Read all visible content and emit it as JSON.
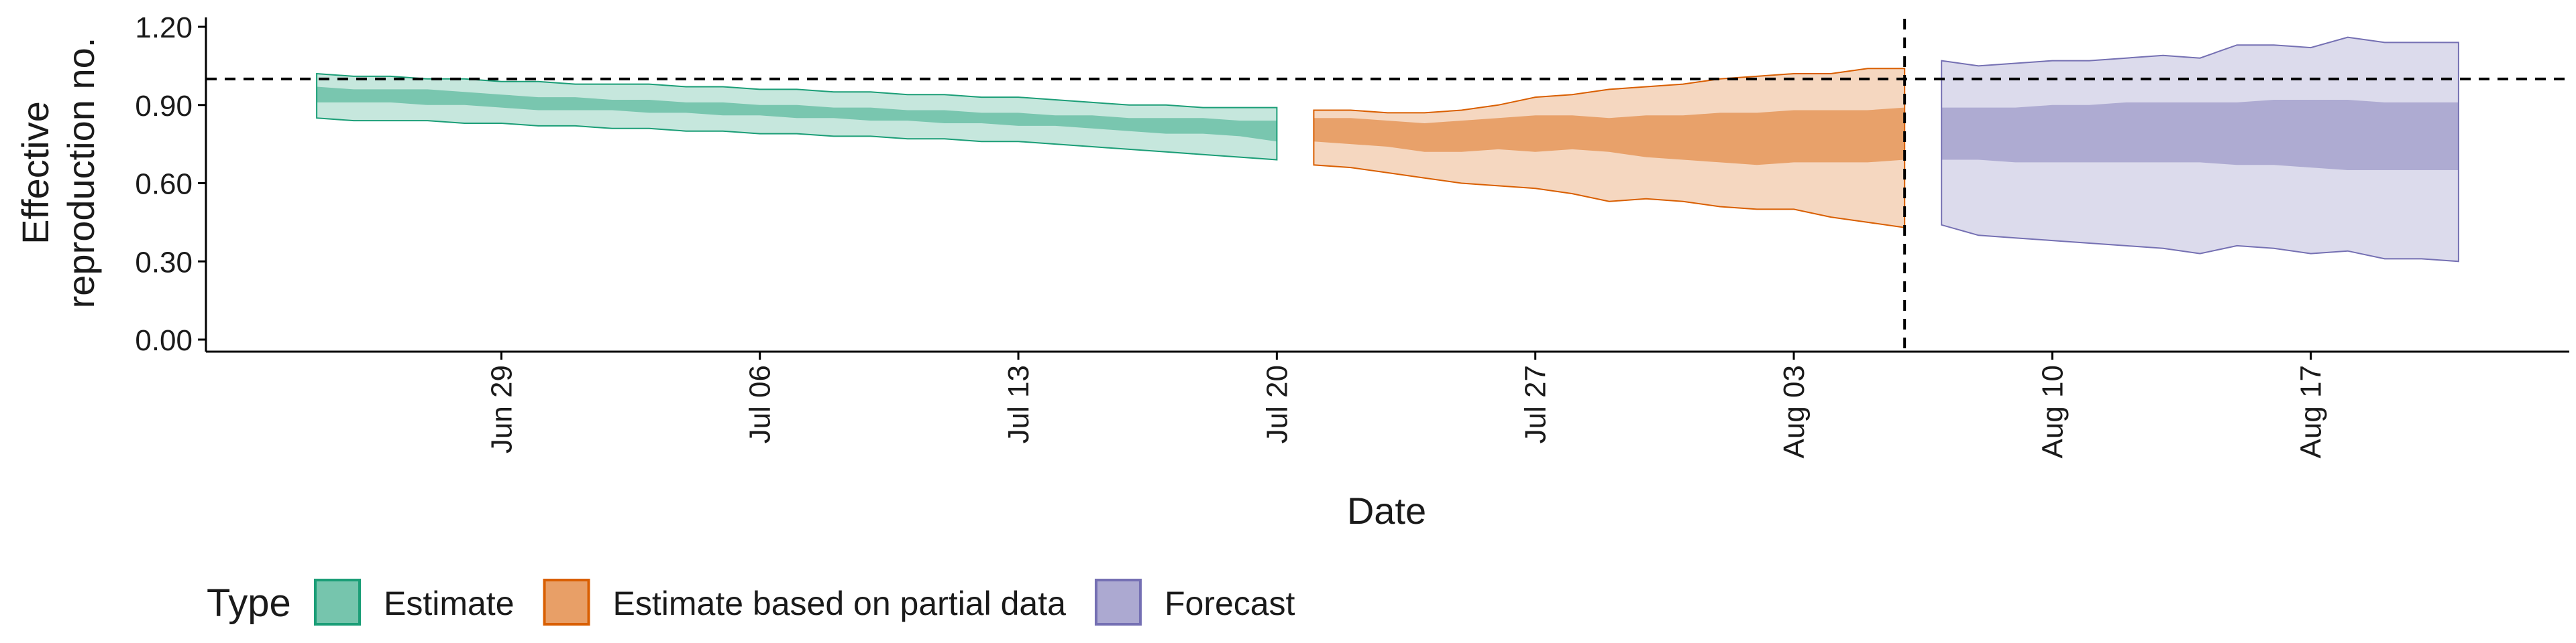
{
  "chart_data": {
    "type": "area",
    "title": "",
    "xlabel": "Date",
    "ylabel_lines": [
      "Effective",
      "reproduction no."
    ],
    "ylim": [
      0,
      1.2
    ],
    "yticks": [
      {
        "value": 0.0,
        "label": "0.00"
      },
      {
        "value": 0.3,
        "label": "0.30"
      },
      {
        "value": 0.6,
        "label": "0.60"
      },
      {
        "value": 0.9,
        "label": "0.90"
      },
      {
        "value": 1.2,
        "label": "1.20"
      }
    ],
    "xlim": [
      "2020-06-21",
      "2020-08-24"
    ],
    "xticks": [
      {
        "date": "2020-06-29",
        "label": "Jun 29"
      },
      {
        "date": "2020-07-06",
        "label": "Jul 06"
      },
      {
        "date": "2020-07-13",
        "label": "Jul 13"
      },
      {
        "date": "2020-07-20",
        "label": "Jul 20"
      },
      {
        "date": "2020-07-27",
        "label": "Jul 27"
      },
      {
        "date": "2020-08-03",
        "label": "Aug 03"
      },
      {
        "date": "2020-08-10",
        "label": "Aug 10"
      },
      {
        "date": "2020-08-17",
        "label": "Aug 17"
      }
    ],
    "reference_hline": 1.0,
    "reference_vline": "2020-08-06",
    "legend_title": "Type",
    "legend_position": "bottom-left",
    "series": [
      {
        "name": "Estimate",
        "fill_color": "#1b9e77",
        "dates": [
          "2020-06-24",
          "2020-06-25",
          "2020-06-26",
          "2020-06-27",
          "2020-06-28",
          "2020-06-29",
          "2020-06-30",
          "2020-07-01",
          "2020-07-02",
          "2020-07-03",
          "2020-07-04",
          "2020-07-05",
          "2020-07-06",
          "2020-07-07",
          "2020-07-08",
          "2020-07-09",
          "2020-07-10",
          "2020-07-11",
          "2020-07-12",
          "2020-07-13",
          "2020-07-14",
          "2020-07-15",
          "2020-07-16",
          "2020-07-17",
          "2020-07-18",
          "2020-07-19",
          "2020-07-20"
        ],
        "lower90": [
          0.85,
          0.84,
          0.84,
          0.84,
          0.83,
          0.83,
          0.82,
          0.82,
          0.81,
          0.81,
          0.8,
          0.8,
          0.79,
          0.79,
          0.78,
          0.78,
          0.77,
          0.77,
          0.76,
          0.76,
          0.75,
          0.74,
          0.73,
          0.72,
          0.71,
          0.7,
          0.69
        ],
        "lower50": [
          0.91,
          0.91,
          0.91,
          0.9,
          0.9,
          0.89,
          0.88,
          0.88,
          0.88,
          0.87,
          0.87,
          0.86,
          0.86,
          0.85,
          0.85,
          0.84,
          0.84,
          0.83,
          0.83,
          0.82,
          0.82,
          0.81,
          0.8,
          0.79,
          0.79,
          0.78,
          0.76
        ],
        "upper50": [
          0.97,
          0.96,
          0.96,
          0.96,
          0.95,
          0.94,
          0.93,
          0.93,
          0.92,
          0.92,
          0.91,
          0.91,
          0.9,
          0.9,
          0.89,
          0.89,
          0.88,
          0.88,
          0.87,
          0.87,
          0.86,
          0.86,
          0.85,
          0.85,
          0.85,
          0.84,
          0.84
        ],
        "upper90": [
          1.02,
          1.01,
          1.01,
          1.0,
          1.0,
          0.99,
          0.99,
          0.98,
          0.98,
          0.98,
          0.97,
          0.97,
          0.96,
          0.96,
          0.95,
          0.95,
          0.94,
          0.94,
          0.93,
          0.93,
          0.92,
          0.91,
          0.9,
          0.9,
          0.89,
          0.89,
          0.89
        ]
      },
      {
        "name": "Estimate based on partial data",
        "fill_color": "#d95f02",
        "dates": [
          "2020-07-21",
          "2020-07-22",
          "2020-07-23",
          "2020-07-24",
          "2020-07-25",
          "2020-07-26",
          "2020-07-27",
          "2020-07-28",
          "2020-07-29",
          "2020-07-30",
          "2020-07-31",
          "2020-08-01",
          "2020-08-02",
          "2020-08-03",
          "2020-08-04",
          "2020-08-05",
          "2020-08-06"
        ],
        "lower90": [
          0.67,
          0.66,
          0.64,
          0.62,
          0.6,
          0.59,
          0.58,
          0.56,
          0.53,
          0.54,
          0.53,
          0.51,
          0.5,
          0.5,
          0.47,
          0.45,
          0.43
        ],
        "lower50": [
          0.76,
          0.75,
          0.74,
          0.72,
          0.72,
          0.73,
          0.72,
          0.73,
          0.72,
          0.7,
          0.69,
          0.68,
          0.67,
          0.68,
          0.68,
          0.68,
          0.69
        ],
        "upper50": [
          0.85,
          0.85,
          0.84,
          0.83,
          0.84,
          0.85,
          0.86,
          0.86,
          0.85,
          0.86,
          0.86,
          0.87,
          0.87,
          0.88,
          0.88,
          0.88,
          0.89
        ],
        "upper90": [
          0.88,
          0.88,
          0.87,
          0.87,
          0.88,
          0.9,
          0.93,
          0.94,
          0.96,
          0.97,
          0.98,
          1.0,
          1.01,
          1.02,
          1.02,
          1.04,
          1.04
        ]
      },
      {
        "name": "Forecast",
        "fill_color": "#7570b3",
        "dates": [
          "2020-08-07",
          "2020-08-08",
          "2020-08-09",
          "2020-08-10",
          "2020-08-11",
          "2020-08-12",
          "2020-08-13",
          "2020-08-14",
          "2020-08-15",
          "2020-08-16",
          "2020-08-17",
          "2020-08-18",
          "2020-08-19",
          "2020-08-20",
          "2020-08-21"
        ],
        "lower90": [
          0.44,
          0.4,
          0.39,
          0.38,
          0.37,
          0.36,
          0.35,
          0.33,
          0.36,
          0.35,
          0.33,
          0.34,
          0.31,
          0.31,
          0.3
        ],
        "lower50": [
          0.69,
          0.69,
          0.68,
          0.68,
          0.68,
          0.68,
          0.68,
          0.68,
          0.67,
          0.67,
          0.66,
          0.65,
          0.65,
          0.65,
          0.65
        ],
        "upper50": [
          0.89,
          0.89,
          0.89,
          0.9,
          0.9,
          0.91,
          0.91,
          0.91,
          0.91,
          0.92,
          0.92,
          0.92,
          0.91,
          0.91,
          0.91
        ],
        "upper90": [
          1.07,
          1.05,
          1.06,
          1.07,
          1.07,
          1.08,
          1.09,
          1.08,
          1.13,
          1.13,
          1.12,
          1.16,
          1.14,
          1.14,
          1.14
        ]
      }
    ]
  }
}
